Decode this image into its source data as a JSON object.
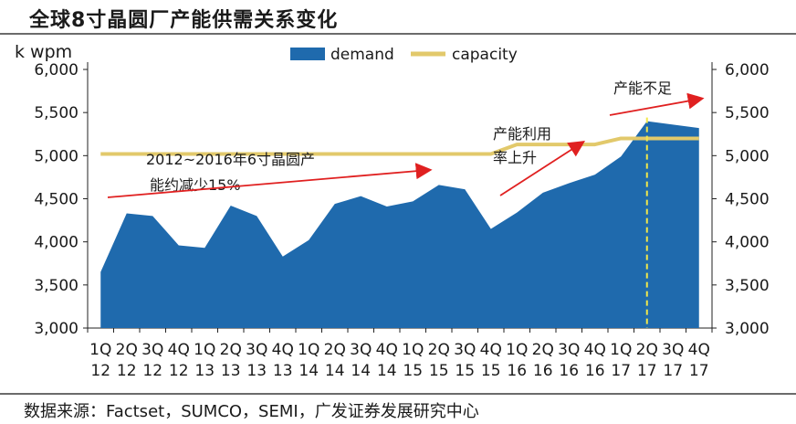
{
  "title": "全球8寸晶圆厂产能供需关系变化",
  "source": "数据来源：Factset，SUMCO，SEMI，广发证券发展研究中心",
  "chart_data": {
    "type": "area",
    "ylabel": "k wpm",
    "ylim": [
      3000,
      6000
    ],
    "yticks": [
      "3,000",
      "3,500",
      "4,000",
      "4,500",
      "5,000",
      "5,500",
      "6,000"
    ],
    "ytick_values": [
      3000,
      3500,
      4000,
      4500,
      5000,
      5500,
      6000
    ],
    "categories": [
      [
        "1Q",
        "12"
      ],
      [
        "2Q",
        "12"
      ],
      [
        "3Q",
        "12"
      ],
      [
        "4Q",
        "12"
      ],
      [
        "1Q",
        "13"
      ],
      [
        "2Q",
        "13"
      ],
      [
        "3Q",
        "13"
      ],
      [
        "4Q",
        "13"
      ],
      [
        "1Q",
        "14"
      ],
      [
        "2Q",
        "14"
      ],
      [
        "3Q",
        "14"
      ],
      [
        "4Q",
        "14"
      ],
      [
        "1Q",
        "15"
      ],
      [
        "2Q",
        "15"
      ],
      [
        "3Q",
        "15"
      ],
      [
        "4Q",
        "15"
      ],
      [
        "1Q",
        "16"
      ],
      [
        "2Q",
        "16"
      ],
      [
        "3Q",
        "16"
      ],
      [
        "4Q",
        "16"
      ],
      [
        "1Q",
        "17"
      ],
      [
        "2Q",
        "17"
      ],
      [
        "3Q",
        "17"
      ],
      [
        "4Q",
        "17"
      ]
    ],
    "legend_position": "top-center",
    "series": [
      {
        "name": "demand",
        "kind": "area",
        "color": "#1f6aad",
        "values": [
          3650,
          4330,
          4300,
          3960,
          3930,
          4420,
          4300,
          3830,
          4020,
          4440,
          4530,
          4410,
          4470,
          4660,
          4610,
          4150,
          4340,
          4570,
          4680,
          4780,
          4990,
          5400,
          5360,
          5320
        ]
      },
      {
        "name": "capacity",
        "kind": "line",
        "color": "#e2c96b",
        "values": [
          5020,
          5020,
          5020,
          5020,
          5020,
          5020,
          5020,
          5020,
          5020,
          5020,
          5020,
          5020,
          5020,
          5020,
          5020,
          5020,
          5130,
          5130,
          5130,
          5130,
          5200,
          5200,
          5200,
          5200
        ]
      }
    ],
    "annotations": [
      {
        "text_lines": [
          "2012~2016年6寸晶圆产",
          "能约减少15%"
        ]
      },
      {
        "text_lines": [
          "产能利用",
          "率上升"
        ]
      },
      {
        "text_lines": [
          "产能不足"
        ]
      }
    ],
    "highlight_category_index": 21,
    "colors": {
      "arrow": "#e02020",
      "dashed_marker": "#f2e84a",
      "axis": "#222222"
    }
  }
}
